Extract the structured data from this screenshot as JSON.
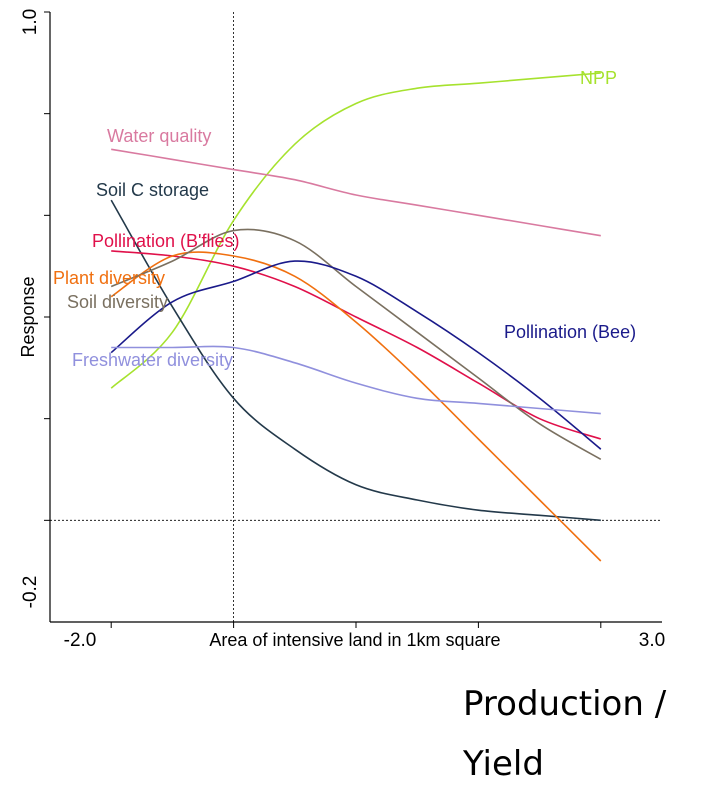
{
  "chart_data": {
    "type": "line",
    "xlabel": "Area of intensive land in 1km square",
    "ylabel": "Response",
    "xlim": [
      -2.0,
      3.0
    ],
    "ylim": [
      -0.2,
      1.0
    ],
    "x_tick_labels": [
      "-2.0",
      "3.0"
    ],
    "y_tick_labels": [
      "-0.2",
      "1.0"
    ],
    "reference_lines": {
      "x": -0.5,
      "y": 0.0
    },
    "grid": false,
    "x": [
      -1.5,
      -1.0,
      -0.5,
      0.0,
      0.5,
      1.0,
      1.5,
      2.0,
      2.5
    ],
    "series": [
      {
        "name": "NPP",
        "color": "#a6e22e",
        "values": [
          0.26,
          0.37,
          0.59,
          0.74,
          0.82,
          0.85,
          0.86,
          0.87,
          0.88
        ]
      },
      {
        "name": "Water quality",
        "color": "#d97aa0",
        "values": [
          0.73,
          0.71,
          0.69,
          0.67,
          0.64,
          0.62,
          0.6,
          0.58,
          0.56
        ]
      },
      {
        "name": "Soil C storage",
        "color": "#23394a",
        "values": [
          0.63,
          0.42,
          0.24,
          0.14,
          0.07,
          0.04,
          0.02,
          0.01,
          0.0
        ]
      },
      {
        "name": "Pollination (B'flies)",
        "color": "#e0104a",
        "values": [
          0.53,
          0.52,
          0.5,
          0.46,
          0.4,
          0.34,
          0.27,
          0.2,
          0.16
        ]
      },
      {
        "name": "Plant diversity",
        "color": "#f07010",
        "values": [
          0.44,
          0.52,
          0.52,
          0.48,
          0.39,
          0.28,
          0.16,
          0.04,
          -0.08
        ]
      },
      {
        "name": "Soil diversity",
        "color": "#7a7060",
        "values": [
          0.46,
          0.51,
          0.57,
          0.55,
          0.46,
          0.37,
          0.28,
          0.19,
          0.12
        ]
      },
      {
        "name": "Pollination (Bee)",
        "color": "#1a1a8a",
        "values": [
          0.33,
          0.43,
          0.47,
          0.51,
          0.48,
          0.41,
          0.33,
          0.24,
          0.14
        ]
      },
      {
        "name": "Freshwater diversity",
        "color": "#9090dd",
        "values": [
          0.34,
          0.34,
          0.34,
          0.31,
          0.27,
          0.24,
          0.23,
          0.22,
          0.21
        ]
      }
    ]
  },
  "caption": "Production /\nYield"
}
